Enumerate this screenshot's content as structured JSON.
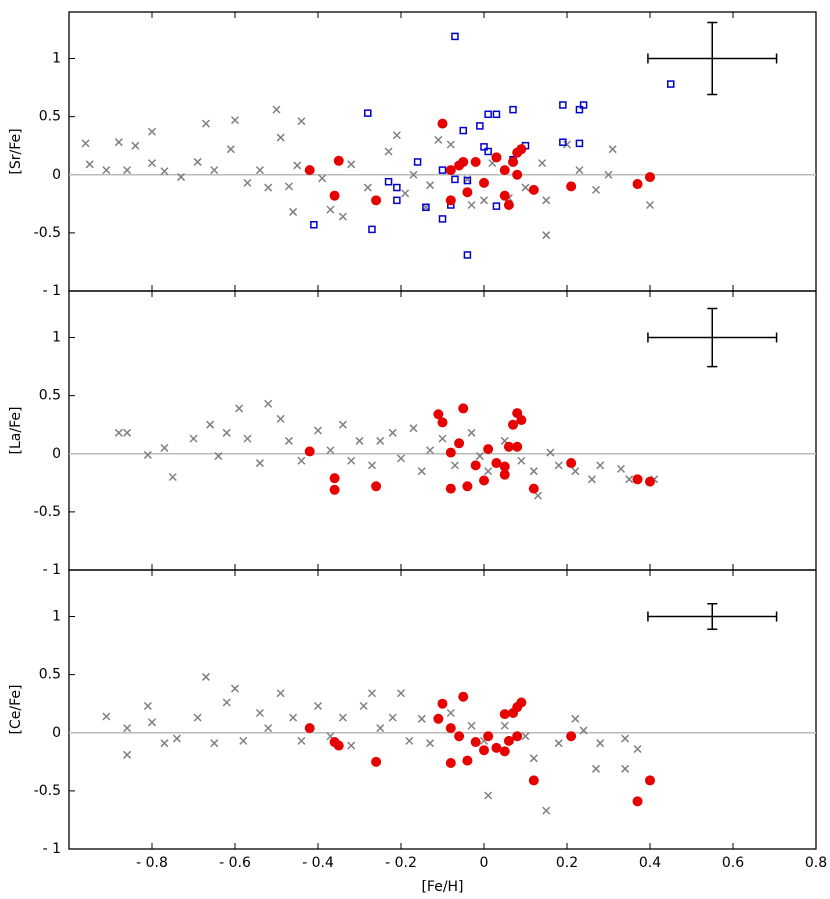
{
  "chart_data": [
    {
      "type": "scatter",
      "ylabel": "[Sr/Fe]",
      "xlim": [
        -1,
        0.8
      ],
      "ylim": [
        -1,
        1.4
      ],
      "yticks": [
        {
          "value": -1,
          "label": "- 1"
        },
        {
          "value": -0.5,
          "label": "-0.5"
        },
        0,
        0.5,
        1
      ],
      "hline": 0,
      "error_bar": {
        "x": 0.55,
        "y": 1,
        "xerr": 0.155,
        "yerr": 0.31
      },
      "series": [
        {
          "marker": "x",
          "color": "#808080",
          "x": [
            -0.96,
            -0.95,
            -0.91,
            -0.88,
            -0.86,
            -0.84,
            -0.8,
            -0.8,
            -0.77,
            -0.73,
            -0.69,
            -0.67,
            -0.65,
            -0.6,
            -0.61,
            -0.57,
            -0.54,
            -0.5,
            -0.49,
            -0.52,
            -0.44,
            -0.45,
            -0.47,
            -0.46,
            -0.39,
            -0.37,
            -0.34,
            -0.32,
            -0.28,
            -0.23,
            -0.21,
            -0.19,
            -0.17,
            -0.14,
            -0.11,
            -0.13,
            -0.08,
            -0.04,
            -0.03,
            0,
            0.02,
            0.06,
            0.1,
            0.14,
            0.15,
            0.15,
            0.2,
            0.23,
            0.27,
            0.3,
            0.31,
            0.4
          ],
          "values": [
            0.27,
            0.09,
            0.04,
            0.28,
            0.04,
            0.25,
            0.37,
            0.1,
            0.03,
            -0.02,
            0.11,
            0.44,
            0.04,
            0.47,
            0.22,
            -0.07,
            0.04,
            0.56,
            0.32,
            -0.11,
            0.46,
            0.08,
            -0.1,
            -0.32,
            -0.03,
            -0.3,
            -0.36,
            0.09,
            -0.11,
            0.2,
            0.34,
            -0.16,
            0.0,
            -0.28,
            0.3,
            -0.09,
            0.26,
            -0.04,
            -0.26,
            -0.22,
            0.1,
            -0.2,
            -0.11,
            0.1,
            -0.22,
            -0.52,
            0.26,
            0.04,
            -0.13,
            0.0,
            0.22,
            -0.26
          ]
        },
        {
          "marker": "square",
          "color": "#0000cc",
          "x": [
            -0.07,
            0.45,
            -0.28,
            0.03,
            0.01,
            0.07,
            0.19,
            0.24,
            0.23,
            0.19,
            0.23,
            0.1,
            -0.01,
            -0.05,
            0,
            0.01,
            -0.16,
            0.07,
            -0.1,
            -0.23,
            -0.21,
            -0.21,
            -0.14,
            -0.07,
            -0.04,
            0.03,
            -0.08,
            -0.41,
            -0.27,
            -0.1,
            -0.04
          ],
          "values": [
            1.19,
            0.78,
            0.53,
            0.52,
            0.52,
            0.56,
            0.6,
            0.6,
            0.56,
            0.28,
            0.27,
            0.25,
            0.42,
            0.38,
            0.24,
            0.2,
            0.11,
            0.13,
            0.04,
            -0.06,
            -0.11,
            -0.22,
            -0.28,
            -0.04,
            -0.05,
            -0.27,
            -0.26,
            -0.43,
            -0.47,
            -0.38,
            -0.69
          ]
        },
        {
          "marker": "circle",
          "color": "#e60000",
          "x": [
            -0.42,
            -0.35,
            -0.36,
            -0.26,
            -0.1,
            -0.08,
            -0.08,
            -0.06,
            -0.05,
            -0.04,
            -0.02,
            0,
            0.03,
            0.05,
            0.05,
            0.06,
            0.07,
            0.08,
            0.08,
            0.09,
            0.12,
            0.21,
            0.37,
            0.4
          ],
          "values": [
            0.04,
            0.12,
            -0.18,
            -0.22,
            0.44,
            -0.22,
            0.04,
            0.08,
            0.11,
            -0.15,
            0.11,
            -0.07,
            0.15,
            -0.18,
            0.04,
            -0.26,
            0.11,
            0.0,
            0.19,
            0.22,
            -0.13,
            -0.1,
            -0.08,
            -0.02
          ]
        }
      ]
    },
    {
      "type": "scatter",
      "ylabel": "[La/Fe]",
      "xlim": [
        -1,
        0.8
      ],
      "ylim": [
        -1,
        1.4
      ],
      "yticks": [
        {
          "value": -1,
          "label": "- 1"
        },
        {
          "value": -0.5,
          "label": "-0.5"
        },
        0,
        0.5,
        1
      ],
      "hline": 0,
      "error_bar": {
        "x": 0.55,
        "y": 1,
        "xerr": 0.155,
        "yerr": 0.25
      },
      "series": [
        {
          "marker": "x",
          "color": "#808080",
          "x": [
            -0.88,
            -0.86,
            -0.81,
            -0.77,
            -0.75,
            -0.7,
            -0.66,
            -0.64,
            -0.62,
            -0.59,
            -0.57,
            -0.54,
            -0.52,
            -0.49,
            -0.47,
            -0.44,
            -0.4,
            -0.37,
            -0.34,
            -0.32,
            -0.3,
            -0.27,
            -0.25,
            -0.22,
            -0.2,
            -0.17,
            -0.15,
            -0.13,
            -0.1,
            -0.07,
            -0.03,
            -0.01,
            0.01,
            0.05,
            0.09,
            0.12,
            0.13,
            0.16,
            0.18,
            0.22,
            0.26,
            0.28,
            0.33,
            0.35,
            0.41
          ],
          "values": [
            0.18,
            0.18,
            -0.01,
            0.05,
            -0.2,
            0.13,
            0.25,
            -0.02,
            0.18,
            0.39,
            0.13,
            -0.08,
            0.43,
            0.3,
            0.11,
            -0.06,
            0.2,
            0.03,
            0.25,
            -0.06,
            0.11,
            -0.1,
            0.11,
            0.18,
            -0.04,
            0.22,
            -0.15,
            0.03,
            0.13,
            -0.1,
            0.18,
            -0.02,
            -0.15,
            0.11,
            -0.06,
            -0.15,
            -0.36,
            0.01,
            -0.1,
            -0.15,
            -0.22,
            -0.1,
            -0.13,
            -0.22,
            -0.22
          ]
        },
        {
          "marker": "circle",
          "color": "#e60000",
          "x": [
            -0.42,
            -0.36,
            -0.36,
            -0.26,
            -0.11,
            -0.1,
            -0.08,
            -0.08,
            -0.06,
            -0.05,
            -0.04,
            -0.02,
            0,
            0.01,
            0.03,
            0.05,
            0.05,
            0.06,
            0.07,
            0.08,
            0.09,
            0.08,
            0.12,
            0.21,
            0.37,
            0.4
          ],
          "values": [
            0.02,
            -0.21,
            -0.31,
            -0.28,
            0.34,
            0.27,
            0.01,
            -0.3,
            0.09,
            0.39,
            -0.28,
            -0.1,
            -0.23,
            0.04,
            -0.08,
            -0.11,
            -0.18,
            0.06,
            0.25,
            0.35,
            0.29,
            0.06,
            -0.3,
            -0.08,
            -0.22,
            -0.24
          ]
        }
      ]
    },
    {
      "type": "scatter",
      "ylabel": "[Ce/Fe]",
      "xlabel": "[Fe/H]",
      "xlim": [
        -1,
        0.8
      ],
      "ylim": [
        -1,
        1.4
      ],
      "xticks": [
        {
          "value": -0.8,
          "label": "- 0.8"
        },
        {
          "value": -0.6,
          "label": "- 0.6"
        },
        {
          "value": -0.4,
          "label": "- 0.4"
        },
        {
          "value": -0.2,
          "label": "- 0.2"
        },
        0,
        0.2,
        0.4,
        0.6,
        0.8
      ],
      "yticks": [
        {
          "value": -1,
          "label": "- 1"
        },
        {
          "value": -0.5,
          "label": "-0.5"
        },
        0,
        0.5,
        1
      ],
      "hline": 0,
      "error_bar": {
        "x": 0.55,
        "y": 1,
        "xerr": 0.155,
        "yerr": 0.11
      },
      "series": [
        {
          "marker": "x",
          "color": "#808080",
          "x": [
            -0.91,
            -0.86,
            -0.86,
            -0.81,
            -0.8,
            -0.77,
            -0.74,
            -0.69,
            -0.67,
            -0.65,
            -0.62,
            -0.6,
            -0.58,
            -0.54,
            -0.52,
            -0.49,
            -0.46,
            -0.44,
            -0.4,
            -0.37,
            -0.34,
            -0.32,
            -0.29,
            -0.27,
            -0.25,
            -0.22,
            -0.2,
            -0.18,
            -0.15,
            -0.13,
            -0.08,
            -0.03,
            0,
            0.01,
            0.05,
            0.1,
            0.12,
            0.15,
            0.18,
            0.22,
            0.24,
            0.27,
            0.28,
            0.34,
            0.34,
            0.37
          ],
          "values": [
            0.14,
            0.04,
            -0.19,
            0.23,
            0.09,
            -0.09,
            -0.05,
            0.13,
            0.48,
            -0.09,
            0.26,
            0.38,
            -0.07,
            0.17,
            0.04,
            0.34,
            0.13,
            -0.07,
            0.23,
            -0.03,
            0.13,
            -0.11,
            0.23,
            0.34,
            0.04,
            0.13,
            0.34,
            -0.07,
            0.12,
            -0.09,
            0.17,
            0.06,
            -0.07,
            -0.54,
            0.06,
            -0.03,
            -0.22,
            -0.67,
            -0.09,
            0.12,
            0.02,
            -0.31,
            -0.09,
            -0.05,
            -0.31,
            -0.14
          ]
        },
        {
          "marker": "circle",
          "color": "#e60000",
          "x": [
            -0.42,
            -0.36,
            -0.35,
            -0.26,
            -0.11,
            -0.1,
            -0.08,
            -0.08,
            -0.06,
            -0.05,
            -0.04,
            -0.02,
            0,
            0.01,
            0.03,
            0.05,
            0.05,
            0.06,
            0.07,
            0.08,
            0.08,
            0.09,
            0.12,
            0.21,
            0.37,
            0.4
          ],
          "values": [
            0.04,
            -0.08,
            -0.11,
            -0.25,
            0.12,
            0.25,
            0.04,
            -0.26,
            -0.03,
            0.31,
            -0.24,
            -0.08,
            -0.15,
            -0.03,
            -0.13,
            -0.16,
            0.16,
            -0.07,
            0.17,
            -0.03,
            0.22,
            0.26,
            -0.41,
            -0.03,
            -0.59,
            -0.41
          ]
        }
      ]
    }
  ]
}
